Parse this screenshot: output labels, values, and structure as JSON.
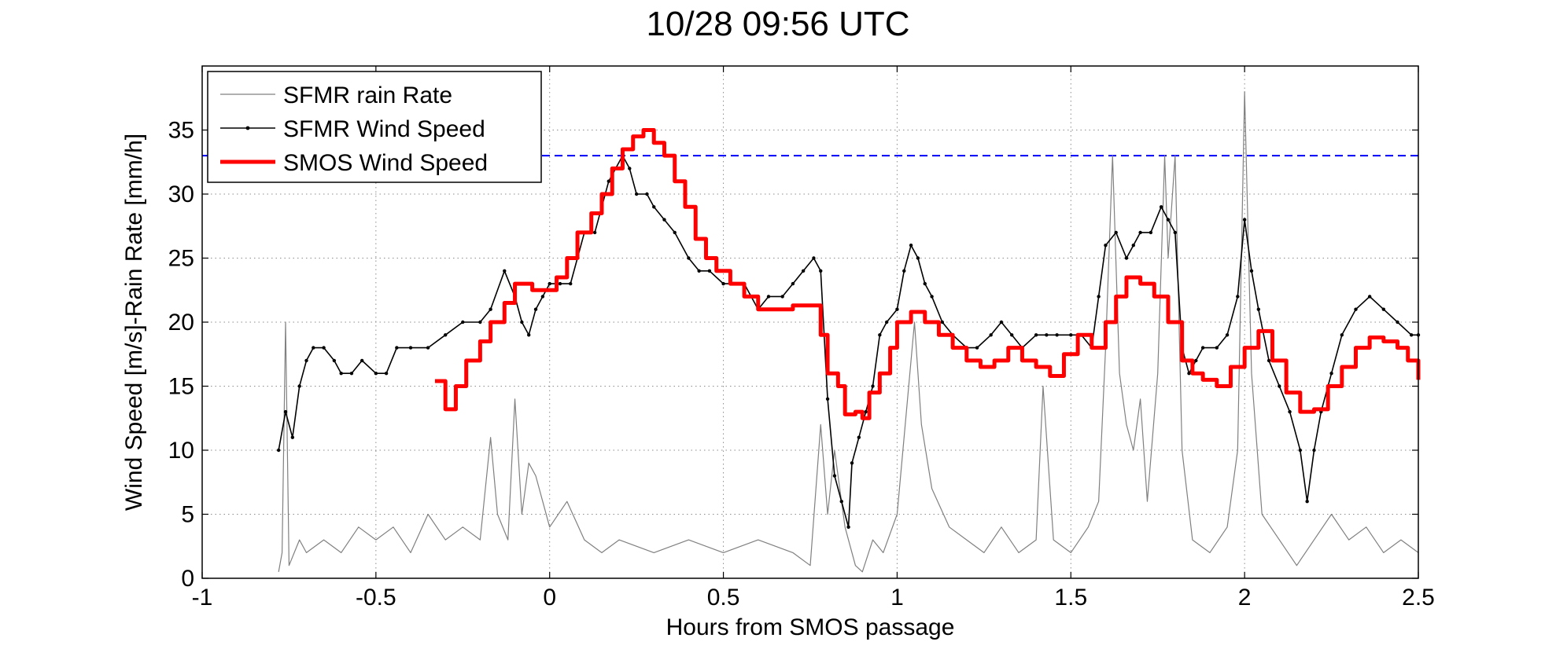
{
  "chart_data": {
    "type": "line",
    "title": "10/28 09:56 UTC",
    "xlabel": "Hours from SMOS passage",
    "ylabel": "Wind Speed [m/s]-Rain Rate [mm/h]",
    "xlim": [
      -1,
      2.5
    ],
    "ylim": [
      0,
      40
    ],
    "grid": true,
    "legend_position": "top-left",
    "x_ticks": [
      -1,
      -0.5,
      0,
      0.5,
      1,
      1.5,
      2,
      2.5
    ],
    "x_tick_labels": [
      "-1",
      "-0.5",
      "0",
      "0.5",
      "1",
      "1.5",
      "2",
      "2.5"
    ],
    "y_ticks": [
      0,
      5,
      10,
      15,
      20,
      25,
      30,
      35
    ],
    "y_tick_labels": [
      "0",
      "5",
      "10",
      "15",
      "20",
      "25",
      "30",
      "35"
    ],
    "reference_line": {
      "y": 33,
      "color": "#0000ff",
      "style": "dashed"
    },
    "series": [
      {
        "name": "SFMR rain Rate",
        "color": "#808080",
        "style": "thin-line",
        "points": [
          [
            -0.78,
            0.5
          ],
          [
            -0.77,
            2
          ],
          [
            -0.76,
            20
          ],
          [
            -0.75,
            1
          ],
          [
            -0.72,
            3
          ],
          [
            -0.7,
            2
          ],
          [
            -0.65,
            3
          ],
          [
            -0.6,
            2
          ],
          [
            -0.55,
            4
          ],
          [
            -0.5,
            3
          ],
          [
            -0.45,
            4
          ],
          [
            -0.4,
            2
          ],
          [
            -0.35,
            5
          ],
          [
            -0.3,
            3
          ],
          [
            -0.25,
            4
          ],
          [
            -0.2,
            3
          ],
          [
            -0.17,
            11
          ],
          [
            -0.15,
            5
          ],
          [
            -0.12,
            3
          ],
          [
            -0.1,
            14
          ],
          [
            -0.08,
            5
          ],
          [
            -0.06,
            9
          ],
          [
            -0.04,
            8
          ],
          [
            -0.02,
            6
          ],
          [
            0,
            4
          ],
          [
            0.05,
            6
          ],
          [
            0.1,
            3
          ],
          [
            0.15,
            2
          ],
          [
            0.2,
            3
          ],
          [
            0.3,
            2
          ],
          [
            0.4,
            3
          ],
          [
            0.5,
            2
          ],
          [
            0.6,
            3
          ],
          [
            0.7,
            2
          ],
          [
            0.75,
            1
          ],
          [
            0.78,
            12
          ],
          [
            0.8,
            5
          ],
          [
            0.82,
            10
          ],
          [
            0.85,
            4
          ],
          [
            0.88,
            1
          ],
          [
            0.9,
            0.5
          ],
          [
            0.93,
            3
          ],
          [
            0.96,
            2
          ],
          [
            1,
            5
          ],
          [
            1.03,
            14
          ],
          [
            1.05,
            20
          ],
          [
            1.07,
            12
          ],
          [
            1.1,
            7
          ],
          [
            1.15,
            4
          ],
          [
            1.2,
            3
          ],
          [
            1.25,
            2
          ],
          [
            1.3,
            4
          ],
          [
            1.35,
            2
          ],
          [
            1.4,
            3
          ],
          [
            1.42,
            15
          ],
          [
            1.45,
            3
          ],
          [
            1.5,
            2
          ],
          [
            1.55,
            4
          ],
          [
            1.58,
            6
          ],
          [
            1.6,
            18
          ],
          [
            1.62,
            33
          ],
          [
            1.64,
            16
          ],
          [
            1.66,
            12
          ],
          [
            1.68,
            10
          ],
          [
            1.7,
            14
          ],
          [
            1.72,
            6
          ],
          [
            1.75,
            16
          ],
          [
            1.77,
            33
          ],
          [
            1.78,
            25
          ],
          [
            1.8,
            33
          ],
          [
            1.82,
            10
          ],
          [
            1.85,
            3
          ],
          [
            1.9,
            2
          ],
          [
            1.95,
            4
          ],
          [
            1.98,
            10
          ],
          [
            2,
            38
          ],
          [
            2.02,
            16
          ],
          [
            2.05,
            5
          ],
          [
            2.1,
            3
          ],
          [
            2.15,
            1
          ],
          [
            2.2,
            3
          ],
          [
            2.25,
            5
          ],
          [
            2.3,
            3
          ],
          [
            2.35,
            4
          ],
          [
            2.4,
            2
          ],
          [
            2.45,
            3
          ],
          [
            2.5,
            2
          ]
        ]
      },
      {
        "name": "SFMR Wind Speed",
        "color": "#000000",
        "style": "line-with-dots",
        "points": [
          [
            -0.78,
            10
          ],
          [
            -0.76,
            13
          ],
          [
            -0.74,
            11
          ],
          [
            -0.72,
            15
          ],
          [
            -0.7,
            17
          ],
          [
            -0.68,
            18
          ],
          [
            -0.65,
            18
          ],
          [
            -0.62,
            17
          ],
          [
            -0.6,
            16
          ],
          [
            -0.57,
            16
          ],
          [
            -0.54,
            17
          ],
          [
            -0.5,
            16
          ],
          [
            -0.47,
            16
          ],
          [
            -0.44,
            18
          ],
          [
            -0.4,
            18
          ],
          [
            -0.35,
            18
          ],
          [
            -0.3,
            19
          ],
          [
            -0.25,
            20
          ],
          [
            -0.2,
            20
          ],
          [
            -0.17,
            21
          ],
          [
            -0.13,
            24
          ],
          [
            -0.1,
            22
          ],
          [
            -0.08,
            20
          ],
          [
            -0.06,
            19
          ],
          [
            -0.04,
            21
          ],
          [
            -0.02,
            22
          ],
          [
            0,
            23
          ],
          [
            0.03,
            23
          ],
          [
            0.06,
            23
          ],
          [
            0.08,
            25
          ],
          [
            0.1,
            27
          ],
          [
            0.13,
            27
          ],
          [
            0.15,
            29
          ],
          [
            0.17,
            31
          ],
          [
            0.19,
            32
          ],
          [
            0.21,
            33
          ],
          [
            0.23,
            32
          ],
          [
            0.25,
            30
          ],
          [
            0.28,
            30
          ],
          [
            0.3,
            29
          ],
          [
            0.33,
            28
          ],
          [
            0.36,
            27
          ],
          [
            0.4,
            25
          ],
          [
            0.43,
            24
          ],
          [
            0.46,
            24
          ],
          [
            0.5,
            23
          ],
          [
            0.53,
            23
          ],
          [
            0.56,
            23
          ],
          [
            0.6,
            21
          ],
          [
            0.63,
            22
          ],
          [
            0.67,
            22
          ],
          [
            0.7,
            23
          ],
          [
            0.73,
            24
          ],
          [
            0.76,
            25
          ],
          [
            0.78,
            24
          ],
          [
            0.8,
            14
          ],
          [
            0.82,
            8
          ],
          [
            0.84,
            6
          ],
          [
            0.86,
            4
          ],
          [
            0.87,
            9
          ],
          [
            0.89,
            11
          ],
          [
            0.91,
            13
          ],
          [
            0.93,
            15
          ],
          [
            0.95,
            19
          ],
          [
            0.97,
            20
          ],
          [
            1,
            21
          ],
          [
            1.02,
            24
          ],
          [
            1.04,
            26
          ],
          [
            1.06,
            25
          ],
          [
            1.08,
            23
          ],
          [
            1.1,
            22
          ],
          [
            1.13,
            20
          ],
          [
            1.16,
            19
          ],
          [
            1.2,
            18
          ],
          [
            1.23,
            18
          ],
          [
            1.27,
            19
          ],
          [
            1.3,
            20
          ],
          [
            1.33,
            19
          ],
          [
            1.36,
            18
          ],
          [
            1.4,
            19
          ],
          [
            1.43,
            19
          ],
          [
            1.46,
            19
          ],
          [
            1.5,
            19
          ],
          [
            1.53,
            19
          ],
          [
            1.56,
            18
          ],
          [
            1.58,
            22
          ],
          [
            1.6,
            26
          ],
          [
            1.63,
            27
          ],
          [
            1.66,
            25
          ],
          [
            1.68,
            26
          ],
          [
            1.7,
            27
          ],
          [
            1.73,
            27
          ],
          [
            1.76,
            29
          ],
          [
            1.78,
            28
          ],
          [
            1.8,
            27
          ],
          [
            1.82,
            18
          ],
          [
            1.84,
            16
          ],
          [
            1.86,
            17
          ],
          [
            1.88,
            18
          ],
          [
            1.92,
            18
          ],
          [
            1.95,
            19
          ],
          [
            1.98,
            22
          ],
          [
            2,
            28
          ],
          [
            2.02,
            24
          ],
          [
            2.04,
            21
          ],
          [
            2.07,
            17
          ],
          [
            2.1,
            15
          ],
          [
            2.13,
            13
          ],
          [
            2.16,
            10
          ],
          [
            2.18,
            6
          ],
          [
            2.2,
            10
          ],
          [
            2.22,
            13
          ],
          [
            2.25,
            16
          ],
          [
            2.28,
            19
          ],
          [
            2.32,
            21
          ],
          [
            2.36,
            22
          ],
          [
            2.4,
            21
          ],
          [
            2.44,
            20
          ],
          [
            2.48,
            19
          ],
          [
            2.5,
            19
          ]
        ]
      },
      {
        "name": "SMOS Wind Speed",
        "color": "#ff0000",
        "style": "thick-step",
        "points": [
          [
            -0.33,
            15.4
          ],
          [
            -0.3,
            13.2
          ],
          [
            -0.27,
            15
          ],
          [
            -0.24,
            17
          ],
          [
            -0.2,
            18.5
          ],
          [
            -0.17,
            20
          ],
          [
            -0.13,
            21.5
          ],
          [
            -0.1,
            23
          ],
          [
            -0.05,
            22.5
          ],
          [
            -0.02,
            22.5
          ],
          [
            0.02,
            23.5
          ],
          [
            0.05,
            25
          ],
          [
            0.08,
            27
          ],
          [
            0.12,
            28.5
          ],
          [
            0.15,
            30
          ],
          [
            0.18,
            32
          ],
          [
            0.21,
            33.5
          ],
          [
            0.24,
            34.5
          ],
          [
            0.27,
            35
          ],
          [
            0.3,
            34
          ],
          [
            0.33,
            33
          ],
          [
            0.36,
            31
          ],
          [
            0.39,
            29
          ],
          [
            0.42,
            26.5
          ],
          [
            0.45,
            25
          ],
          [
            0.48,
            24
          ],
          [
            0.52,
            23
          ],
          [
            0.56,
            22
          ],
          [
            0.6,
            21
          ],
          [
            0.65,
            21
          ],
          [
            0.7,
            21.3
          ],
          [
            0.75,
            21.3
          ],
          [
            0.78,
            19
          ],
          [
            0.8,
            16
          ],
          [
            0.83,
            15
          ],
          [
            0.85,
            12.8
          ],
          [
            0.88,
            13
          ],
          [
            0.9,
            12.5
          ],
          [
            0.92,
            14.5
          ],
          [
            0.95,
            16
          ],
          [
            0.98,
            18
          ],
          [
            1.0,
            20
          ],
          [
            1.04,
            20.8
          ],
          [
            1.08,
            20
          ],
          [
            1.12,
            19
          ],
          [
            1.16,
            18
          ],
          [
            1.2,
            17
          ],
          [
            1.24,
            16.5
          ],
          [
            1.28,
            17
          ],
          [
            1.32,
            18
          ],
          [
            1.36,
            17
          ],
          [
            1.4,
            16.5
          ],
          [
            1.44,
            15.8
          ],
          [
            1.48,
            17.5
          ],
          [
            1.52,
            19
          ],
          [
            1.56,
            18
          ],
          [
            1.6,
            20
          ],
          [
            1.63,
            22
          ],
          [
            1.66,
            23.5
          ],
          [
            1.7,
            23
          ],
          [
            1.74,
            22
          ],
          [
            1.78,
            20
          ],
          [
            1.82,
            17
          ],
          [
            1.85,
            16
          ],
          [
            1.88,
            15.5
          ],
          [
            1.92,
            15
          ],
          [
            1.96,
            16.5
          ],
          [
            2.0,
            18
          ],
          [
            2.04,
            19.3
          ],
          [
            2.08,
            17
          ],
          [
            2.12,
            14.5
          ],
          [
            2.16,
            13
          ],
          [
            2.2,
            13.2
          ],
          [
            2.24,
            15
          ],
          [
            2.28,
            16.5
          ],
          [
            2.32,
            18
          ],
          [
            2.36,
            18.8
          ],
          [
            2.4,
            18.5
          ],
          [
            2.44,
            18
          ],
          [
            2.47,
            17
          ],
          [
            2.5,
            15.5
          ]
        ]
      }
    ]
  }
}
